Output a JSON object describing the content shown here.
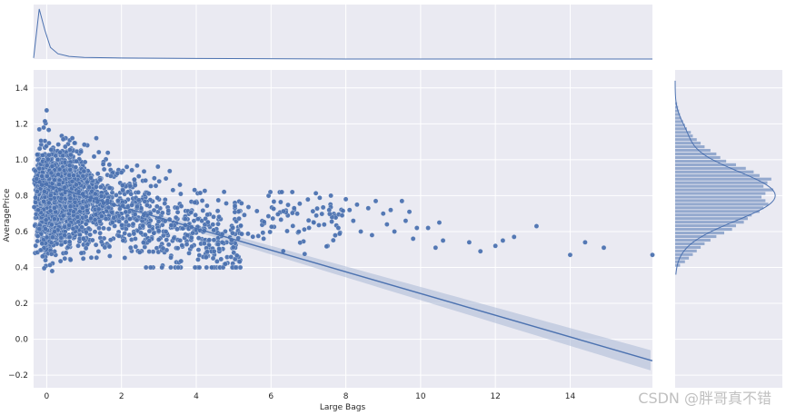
{
  "chart_data": {
    "type": "scatter",
    "title": "",
    "xlabel": "Large Bags",
    "ylabel": "AveragePrice",
    "xlim": [
      -0.35,
      16.2
    ],
    "ylim": [
      -0.27,
      1.5
    ],
    "x_ticks": [
      0,
      2,
      4,
      6,
      8,
      10,
      12,
      14
    ],
    "y_ticks": [
      -0.2,
      0.0,
      0.2,
      0.4,
      0.6,
      0.8,
      1.0,
      1.2,
      1.4
    ],
    "x_tick_labels": [
      "0",
      "2",
      "4",
      "6",
      "8",
      "10",
      "12",
      "14"
    ],
    "y_tick_labels": [
      "−0.2",
      "0.0",
      "0.2",
      "0.4",
      "0.6",
      "0.8",
      "1.0",
      "1.2",
      "1.4"
    ],
    "grid": true,
    "style": "seaborn-darkgrid jointplot (kind=reg)",
    "colors": {
      "points": "#4c72b0",
      "line": "#4c72b0",
      "band": "#aab8d6",
      "background": "#eaeaf2",
      "grid": "#ffffff"
    },
    "regression": {
      "x": [
        -0.35,
        16.2
      ],
      "y": [
        0.88,
        -0.12
      ]
    },
    "points": [
      [
        8.0,
        0.78
      ],
      [
        8.1,
        0.72
      ],
      [
        8.3,
        0.75
      ],
      [
        8.6,
        0.73
      ],
      [
        8.8,
        0.77
      ],
      [
        9.0,
        0.7
      ],
      [
        9.2,
        0.72
      ],
      [
        9.5,
        0.77
      ],
      [
        9.7,
        0.71
      ],
      [
        9.1,
        0.64
      ],
      [
        9.3,
        0.6
      ],
      [
        9.6,
        0.66
      ],
      [
        9.9,
        0.62
      ],
      [
        9.8,
        0.56
      ],
      [
        10.2,
        0.62
      ],
      [
        10.5,
        0.65
      ],
      [
        10.6,
        0.55
      ],
      [
        10.4,
        0.51
      ],
      [
        11.3,
        0.54
      ],
      [
        11.6,
        0.49
      ],
      [
        12.0,
        0.52
      ],
      [
        12.2,
        0.55
      ],
      [
        12.5,
        0.57
      ],
      [
        13.1,
        0.63
      ],
      [
        14.0,
        0.47
      ],
      [
        14.4,
        0.54
      ],
      [
        14.9,
        0.51
      ],
      [
        16.2,
        0.47
      ],
      [
        8.4,
        0.6
      ],
      [
        8.7,
        0.58
      ],
      [
        8.2,
        0.66
      ],
      [
        7.8,
        0.62
      ],
      [
        7.6,
        0.8
      ],
      [
        7.9,
        0.69
      ]
    ],
    "histogram_x_density": {
      "x": [
        -0.35,
        -0.2,
        -0.05,
        0.1,
        0.3,
        0.6,
        1.0,
        2.0,
        4.0,
        8.0,
        16.2
      ],
      "density": [
        0.02,
        0.95,
        0.55,
        0.22,
        0.1,
        0.05,
        0.03,
        0.02,
        0.01,
        0.0,
        0.0
      ]
    },
    "histogram_y": {
      "bins": [
        0.4,
        0.42,
        0.44,
        0.46,
        0.48,
        0.5,
        0.52,
        0.54,
        0.56,
        0.58,
        0.6,
        0.62,
        0.64,
        0.66,
        0.68,
        0.7,
        0.72,
        0.74,
        0.76,
        0.78,
        0.8,
        0.82,
        0.84,
        0.86,
        0.88,
        0.9,
        0.92,
        0.94,
        0.96,
        0.98,
        1.0,
        1.02,
        1.04,
        1.06,
        1.08,
        1.1,
        1.12,
        1.14,
        1.16,
        1.18,
        1.2,
        1.22,
        1.24,
        1.26,
        1.28,
        1.3
      ],
      "counts": [
        0.05,
        0.1,
        0.14,
        0.18,
        0.22,
        0.26,
        0.3,
        0.36,
        0.42,
        0.5,
        0.58,
        0.62,
        0.7,
        0.74,
        0.78,
        0.86,
        0.9,
        0.95,
        0.92,
        0.88,
        0.92,
        1.0,
        0.9,
        0.94,
        0.98,
        0.86,
        0.8,
        0.72,
        0.62,
        0.52,
        0.46,
        0.42,
        0.36,
        0.3,
        0.26,
        0.22,
        0.18,
        0.16,
        0.12,
        0.1,
        0.08,
        0.06,
        0.05,
        0.04,
        0.03,
        0.02
      ]
    }
  },
  "watermark": "CSDN @胖哥真不错"
}
